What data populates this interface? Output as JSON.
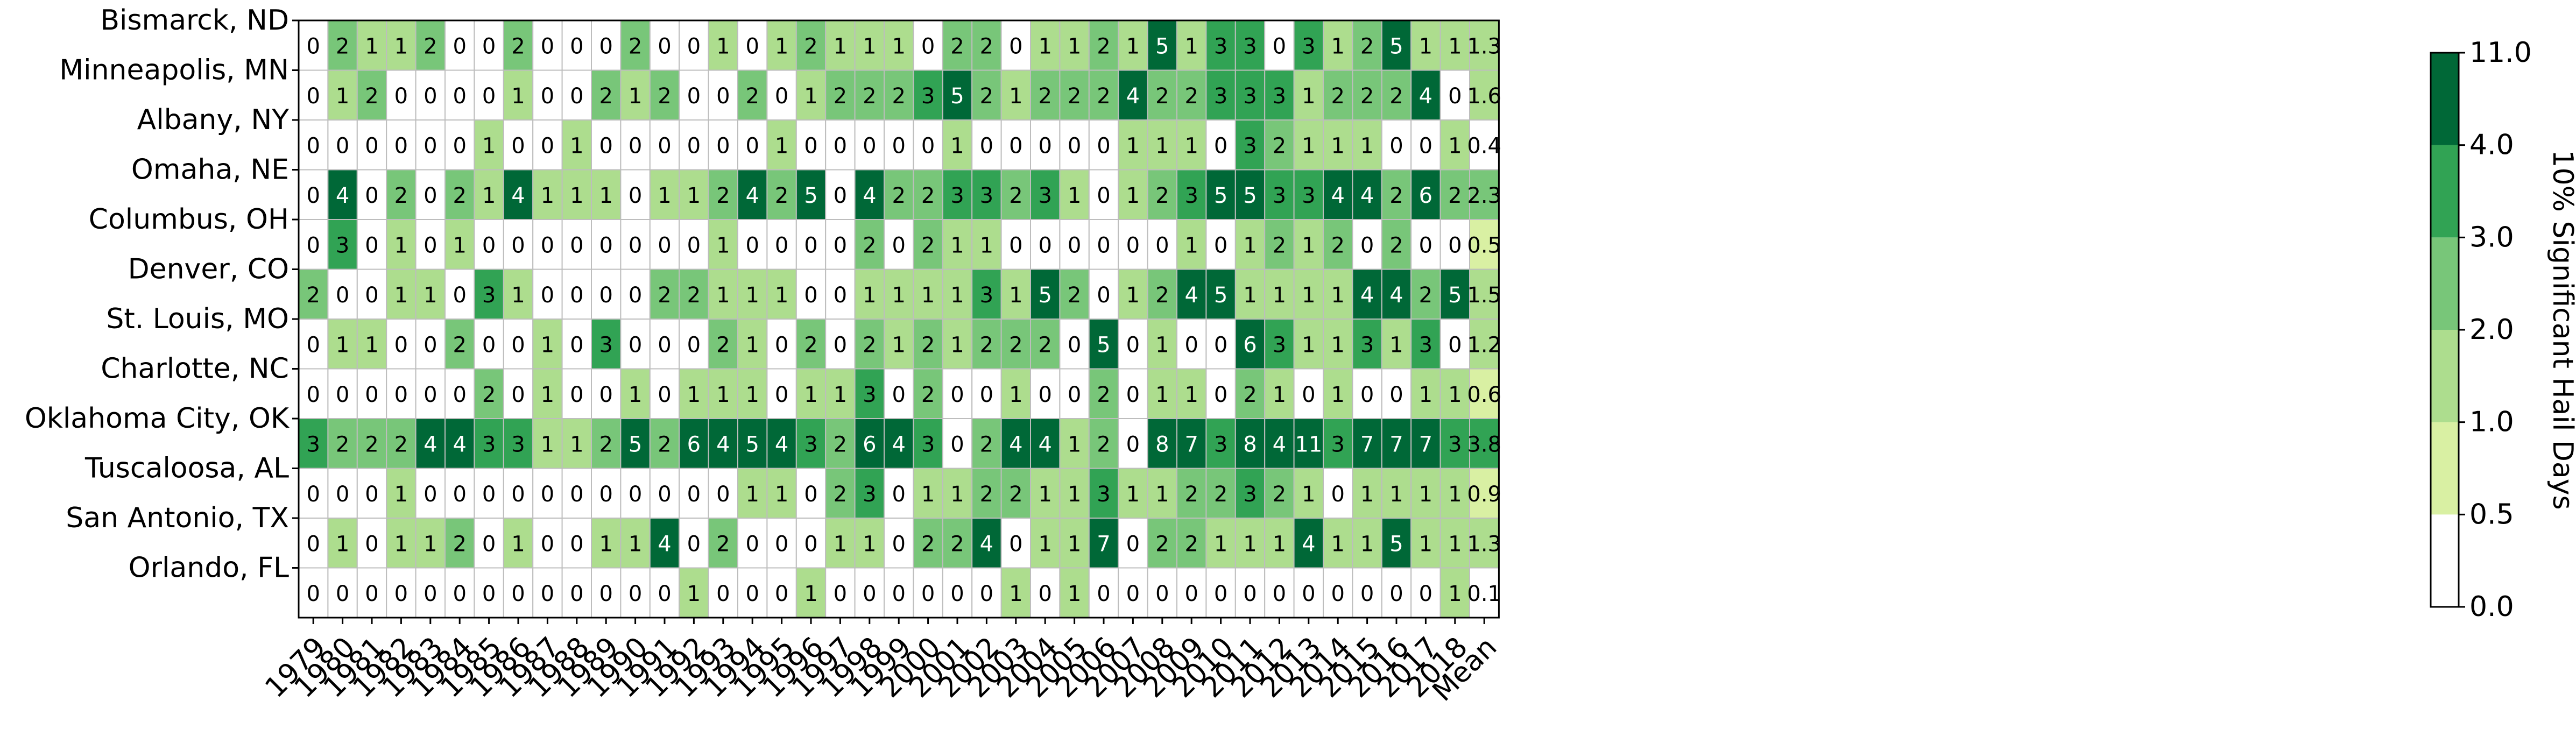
{
  "chart_data": {
    "type": "heatmap",
    "title": "",
    "xlabel": "",
    "ylabel": "",
    "x_categories": [
      "1979",
      "1980",
      "1981",
      "1982",
      "1983",
      "1984",
      "1985",
      "1986",
      "1987",
      "1988",
      "1989",
      "1990",
      "1991",
      "1992",
      "1993",
      "1994",
      "1995",
      "1996",
      "1997",
      "1998",
      "1999",
      "2000",
      "2001",
      "2002",
      "2003",
      "2004",
      "2005",
      "2006",
      "2007",
      "2008",
      "2009",
      "2010",
      "2011",
      "2012",
      "2013",
      "2014",
      "2015",
      "2016",
      "2017",
      "2018",
      "Mean"
    ],
    "y_categories": [
      "Bismarck, ND",
      "Minneapolis, MN",
      "Albany, NY",
      "Omaha, NE",
      "Columbus, OH",
      "Denver, CO",
      "St. Louis, MO",
      "Charlotte, NC",
      "Oklahoma City, OK",
      "Tuscaloosa, AL",
      "San Antonio, TX",
      "Orlando, FL"
    ],
    "values": [
      [
        "0",
        "2",
        "1",
        "1",
        "2",
        "0",
        "0",
        "2",
        "0",
        "0",
        "0",
        "2",
        "0",
        "0",
        "1",
        "0",
        "1",
        "2",
        "1",
        "1",
        "1",
        "0",
        "2",
        "2",
        "0",
        "1",
        "1",
        "2",
        "1",
        "5",
        "1",
        "3",
        "3",
        "0",
        "3",
        "1",
        "2",
        "5",
        "1",
        "1",
        "1.3"
      ],
      [
        "0",
        "1",
        "2",
        "0",
        "0",
        "0",
        "0",
        "1",
        "0",
        "0",
        "2",
        "1",
        "2",
        "0",
        "0",
        "2",
        "0",
        "1",
        "2",
        "2",
        "2",
        "3",
        "5",
        "2",
        "1",
        "2",
        "2",
        "2",
        "4",
        "2",
        "2",
        "3",
        "3",
        "3",
        "1",
        "2",
        "2",
        "2",
        "4",
        "0",
        "1.6"
      ],
      [
        "0",
        "0",
        "0",
        "0",
        "0",
        "0",
        "1",
        "0",
        "0",
        "1",
        "0",
        "0",
        "0",
        "0",
        "0",
        "0",
        "1",
        "0",
        "0",
        "0",
        "0",
        "0",
        "1",
        "0",
        "0",
        "0",
        "0",
        "0",
        "1",
        "1",
        "1",
        "0",
        "3",
        "2",
        "1",
        "1",
        "1",
        "0",
        "0",
        "1",
        "0.4"
      ],
      [
        "0",
        "4",
        "0",
        "2",
        "0",
        "2",
        "1",
        "4",
        "1",
        "1",
        "1",
        "0",
        "1",
        "1",
        "2",
        "4",
        "2",
        "5",
        "0",
        "4",
        "2",
        "2",
        "3",
        "3",
        "2",
        "3",
        "1",
        "0",
        "1",
        "2",
        "3",
        "5",
        "5",
        "3",
        "3",
        "4",
        "4",
        "2",
        "6",
        "2",
        "2.3"
      ],
      [
        "0",
        "3",
        "0",
        "1",
        "0",
        "1",
        "0",
        "0",
        "0",
        "0",
        "0",
        "0",
        "0",
        "0",
        "1",
        "0",
        "0",
        "0",
        "0",
        "2",
        "0",
        "2",
        "1",
        "1",
        "0",
        "0",
        "0",
        "0",
        "0",
        "0",
        "1",
        "0",
        "1",
        "2",
        "1",
        "2",
        "0",
        "2",
        "0",
        "0",
        "0.5"
      ],
      [
        "2",
        "0",
        "0",
        "1",
        "1",
        "0",
        "3",
        "1",
        "0",
        "0",
        "0",
        "0",
        "2",
        "2",
        "1",
        "1",
        "1",
        "0",
        "0",
        "1",
        "1",
        "1",
        "1",
        "3",
        "1",
        "5",
        "2",
        "0",
        "1",
        "2",
        "4",
        "5",
        "1",
        "1",
        "1",
        "1",
        "4",
        "4",
        "2",
        "5",
        "1.5"
      ],
      [
        "0",
        "1",
        "1",
        "0",
        "0",
        "2",
        "0",
        "0",
        "1",
        "0",
        "3",
        "0",
        "0",
        "0",
        "2",
        "1",
        "0",
        "2",
        "0",
        "2",
        "1",
        "2",
        "1",
        "2",
        "2",
        "2",
        "0",
        "5",
        "0",
        "1",
        "0",
        "0",
        "6",
        "3",
        "1",
        "1",
        "3",
        "1",
        "3",
        "0",
        "1.2"
      ],
      [
        "0",
        "0",
        "0",
        "0",
        "0",
        "0",
        "2",
        "0",
        "1",
        "0",
        "0",
        "1",
        "0",
        "1",
        "1",
        "1",
        "0",
        "1",
        "1",
        "3",
        "0",
        "2",
        "0",
        "0",
        "1",
        "0",
        "0",
        "2",
        "0",
        "1",
        "1",
        "0",
        "2",
        "1",
        "0",
        "1",
        "0",
        "0",
        "1",
        "1",
        "0.6"
      ],
      [
        "3",
        "2",
        "2",
        "2",
        "4",
        "4",
        "3",
        "3",
        "1",
        "1",
        "2",
        "5",
        "2",
        "6",
        "4",
        "5",
        "4",
        "3",
        "2",
        "6",
        "4",
        "3",
        "0",
        "2",
        "4",
        "4",
        "1",
        "2",
        "0",
        "8",
        "7",
        "3",
        "8",
        "4",
        "11",
        "3",
        "7",
        "7",
        "7",
        "3",
        "3.8"
      ],
      [
        "0",
        "0",
        "0",
        "1",
        "0",
        "0",
        "0",
        "0",
        "0",
        "0",
        "0",
        "0",
        "0",
        "0",
        "0",
        "1",
        "1",
        "0",
        "2",
        "3",
        "0",
        "1",
        "1",
        "2",
        "2",
        "1",
        "1",
        "3",
        "1",
        "1",
        "2",
        "2",
        "3",
        "2",
        "1",
        "0",
        "1",
        "1",
        "1",
        "1",
        "0.9"
      ],
      [
        "0",
        "1",
        "0",
        "1",
        "1",
        "2",
        "0",
        "1",
        "0",
        "0",
        "1",
        "1",
        "4",
        "0",
        "2",
        "0",
        "0",
        "0",
        "1",
        "1",
        "0",
        "2",
        "2",
        "4",
        "0",
        "1",
        "1",
        "7",
        "0",
        "2",
        "2",
        "1",
        "1",
        "1",
        "4",
        "1",
        "1",
        "5",
        "1",
        "1",
        "1.3"
      ],
      [
        "0",
        "0",
        "0",
        "0",
        "0",
        "0",
        "0",
        "0",
        "0",
        "0",
        "0",
        "0",
        "0",
        "1",
        "0",
        "0",
        "0",
        "1",
        "0",
        "0",
        "0",
        "0",
        "0",
        "0",
        "1",
        "0",
        "1",
        "0",
        "0",
        "0",
        "0",
        "0",
        "0",
        "0",
        "0",
        "0",
        "0",
        "0",
        "0",
        "1",
        "0.1"
      ]
    ],
    "colorbar": {
      "label": "10% Significant Hail Days",
      "bounds": [
        0.0,
        0.5,
        1.0,
        2.0,
        3.0,
        4.0,
        11.0
      ],
      "tick_labels": [
        "0.0",
        "0.5",
        "1.0",
        "2.0",
        "3.0",
        "4.0",
        "11.0"
      ],
      "colors": [
        "#ffffff",
        "#d9f0a3",
        "#addd8e",
        "#78c679",
        "#31a354",
        "#006837"
      ]
    },
    "grid": true,
    "legend": "right"
  }
}
